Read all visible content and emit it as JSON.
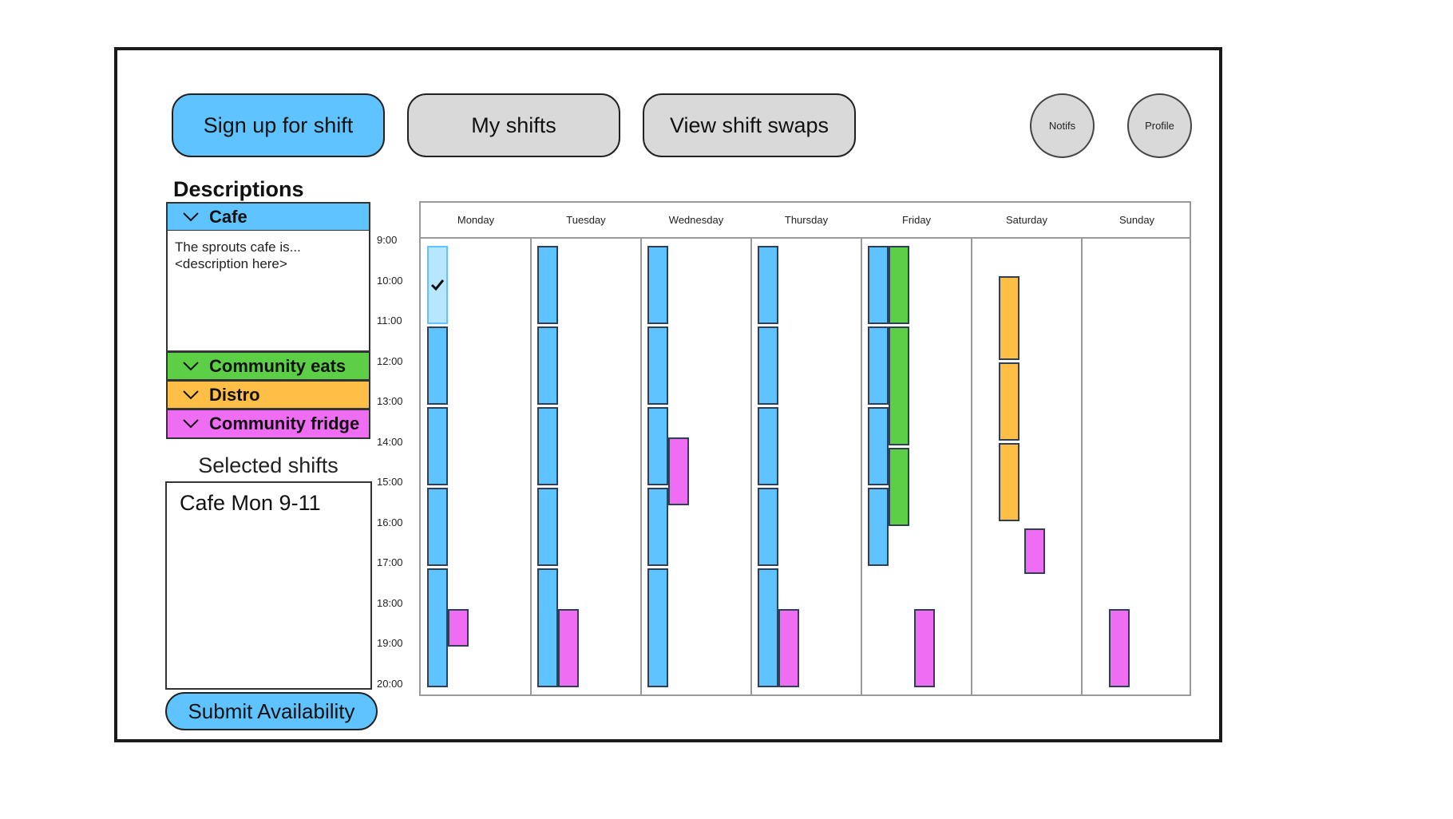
{
  "nav": {
    "signup_label": "Sign up for shift",
    "myshifts_label": "My shifts",
    "swaps_label": "View shift swaps",
    "notifs_label": "Notifs",
    "profile_label": "Profile"
  },
  "colors": {
    "cafe": "#5ec3ff",
    "cafe_selected": "#b9e6ff",
    "community_eats": "#5ccf47",
    "distro": "#ffbe45",
    "community_fridge": "#ef6df2",
    "button_gray": "#d9d9d9"
  },
  "descriptions": {
    "title": "Descriptions",
    "categories": [
      {
        "label": "Cafe",
        "body_line1": "The sprouts cafe is...",
        "body_line2": "<description here>",
        "color": "#5ec3ff",
        "expanded": true
      },
      {
        "label": "Community eats",
        "color": "#5ccf47",
        "expanded": false
      },
      {
        "label": "Distro",
        "color": "#ffbe45",
        "expanded": false
      },
      {
        "label": "Community fridge",
        "color": "#ef6df2",
        "expanded": false
      }
    ]
  },
  "selected": {
    "title": "Selected shifts",
    "items": [
      "Cafe Mon 9-11"
    ]
  },
  "submit_label": "Submit Availability",
  "schedule": {
    "days": [
      "Monday",
      "Tuesday",
      "Wednesday",
      "Thursday",
      "Friday",
      "Saturday",
      "Sunday"
    ],
    "times": [
      "9:00",
      "10:00",
      "11:00",
      "12:00",
      "13:00",
      "14:00",
      "15:00",
      "16:00",
      "17:00",
      "18:00",
      "19:00",
      "20:00"
    ],
    "shifts": [
      {
        "day": 0,
        "lane": 0,
        "start": 9,
        "end": 11,
        "category": "cafe",
        "selected": true
      },
      {
        "day": 0,
        "lane": 0,
        "start": 11,
        "end": 13,
        "category": "cafe"
      },
      {
        "day": 0,
        "lane": 0,
        "start": 13,
        "end": 15,
        "category": "cafe"
      },
      {
        "day": 0,
        "lane": 0,
        "start": 15,
        "end": 17,
        "category": "cafe"
      },
      {
        "day": 0,
        "lane": 0,
        "start": 17,
        "end": 20,
        "category": "cafe"
      },
      {
        "day": 0,
        "lane": 1,
        "start": 18,
        "end": 19,
        "category": "community_fridge"
      },
      {
        "day": 1,
        "lane": 0,
        "start": 9,
        "end": 11,
        "category": "cafe"
      },
      {
        "day": 1,
        "lane": 0,
        "start": 11,
        "end": 13,
        "category": "cafe"
      },
      {
        "day": 1,
        "lane": 0,
        "start": 13,
        "end": 15,
        "category": "cafe"
      },
      {
        "day": 1,
        "lane": 0,
        "start": 15,
        "end": 17,
        "category": "cafe"
      },
      {
        "day": 1,
        "lane": 0,
        "start": 17,
        "end": 20,
        "category": "cafe"
      },
      {
        "day": 1,
        "lane": 1,
        "start": 18,
        "end": 20,
        "category": "community_fridge"
      },
      {
        "day": 2,
        "lane": 0,
        "start": 9,
        "end": 11,
        "category": "cafe"
      },
      {
        "day": 2,
        "lane": 0,
        "start": 11,
        "end": 13,
        "category": "cafe"
      },
      {
        "day": 2,
        "lane": 0,
        "start": 13,
        "end": 15,
        "category": "cafe"
      },
      {
        "day": 2,
        "lane": 0,
        "start": 15,
        "end": 17,
        "category": "cafe"
      },
      {
        "day": 2,
        "lane": 0,
        "start": 17,
        "end": 20,
        "category": "cafe"
      },
      {
        "day": 2,
        "lane": 1,
        "start": 13.75,
        "end": 15.5,
        "category": "community_fridge"
      },
      {
        "day": 3,
        "lane": 0,
        "start": 9,
        "end": 11,
        "category": "cafe"
      },
      {
        "day": 3,
        "lane": 0,
        "start": 11,
        "end": 13,
        "category": "cafe"
      },
      {
        "day": 3,
        "lane": 0,
        "start": 13,
        "end": 15,
        "category": "cafe"
      },
      {
        "day": 3,
        "lane": 0,
        "start": 15,
        "end": 17,
        "category": "cafe"
      },
      {
        "day": 3,
        "lane": 0,
        "start": 17,
        "end": 20,
        "category": "cafe"
      },
      {
        "day": 3,
        "lane": 1,
        "start": 18,
        "end": 20,
        "category": "community_fridge"
      },
      {
        "day": 4,
        "lane": 0,
        "start": 9,
        "end": 11,
        "category": "cafe"
      },
      {
        "day": 4,
        "lane": 0,
        "start": 11,
        "end": 13,
        "category": "cafe"
      },
      {
        "day": 4,
        "lane": 0,
        "start": 13,
        "end": 15,
        "category": "cafe"
      },
      {
        "day": 4,
        "lane": 0,
        "start": 15,
        "end": 17,
        "category": "cafe"
      },
      {
        "day": 4,
        "lane": 1,
        "start": 9,
        "end": 11,
        "category": "community_eats"
      },
      {
        "day": 4,
        "lane": 1,
        "start": 11,
        "end": 14,
        "category": "community_eats"
      },
      {
        "day": 4,
        "lane": 1,
        "start": 14,
        "end": 16,
        "category": "community_eats"
      },
      {
        "day": 4,
        "lane": 2,
        "start": 18,
        "end": 20,
        "category": "community_fridge"
      },
      {
        "day": 5,
        "lane": 1,
        "start": 9.75,
        "end": 11.9,
        "category": "distro"
      },
      {
        "day": 5,
        "lane": 1,
        "start": 11.9,
        "end": 13.9,
        "category": "distro"
      },
      {
        "day": 5,
        "lane": 1,
        "start": 13.9,
        "end": 15.9,
        "category": "distro"
      },
      {
        "day": 5,
        "lane": 2,
        "start": 16,
        "end": 17.2,
        "category": "community_fridge"
      },
      {
        "day": 6,
        "lane": 1,
        "start": 18,
        "end": 20,
        "category": "community_fridge"
      }
    ]
  }
}
